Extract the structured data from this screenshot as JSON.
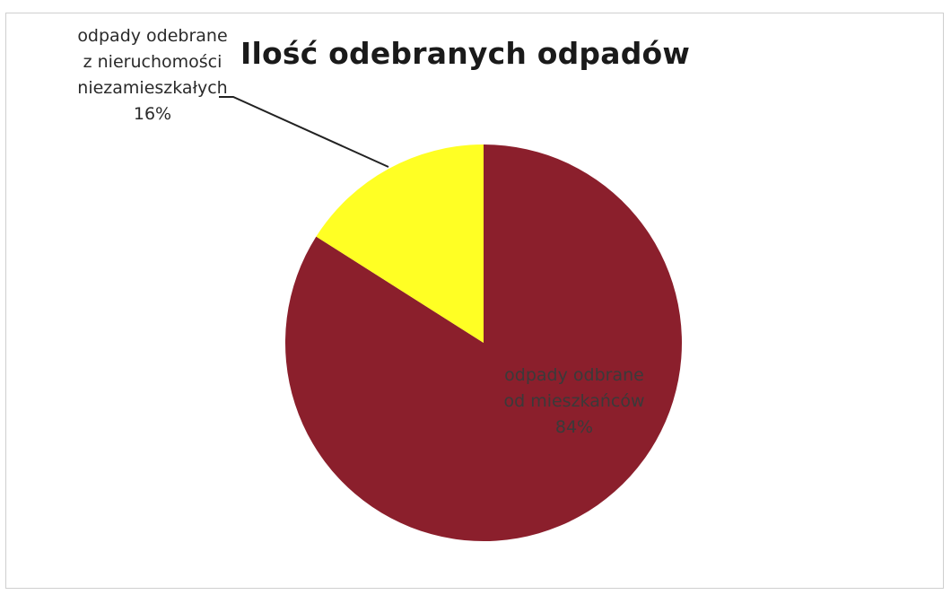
{
  "chart_data": {
    "type": "pie",
    "title": "Ilość odebranych odpadów",
    "slices": [
      {
        "name_lines": [
          "odpady odbrane",
          "od mieszkańców"
        ],
        "value": 84,
        "label": "84%",
        "color": "#8b1f2c"
      },
      {
        "name_lines": [
          "odpady odebrane",
          "z nieruchomości",
          "niezamieszkałych"
        ],
        "value": 16,
        "label": "16%",
        "color": "#ffff24"
      }
    ]
  }
}
